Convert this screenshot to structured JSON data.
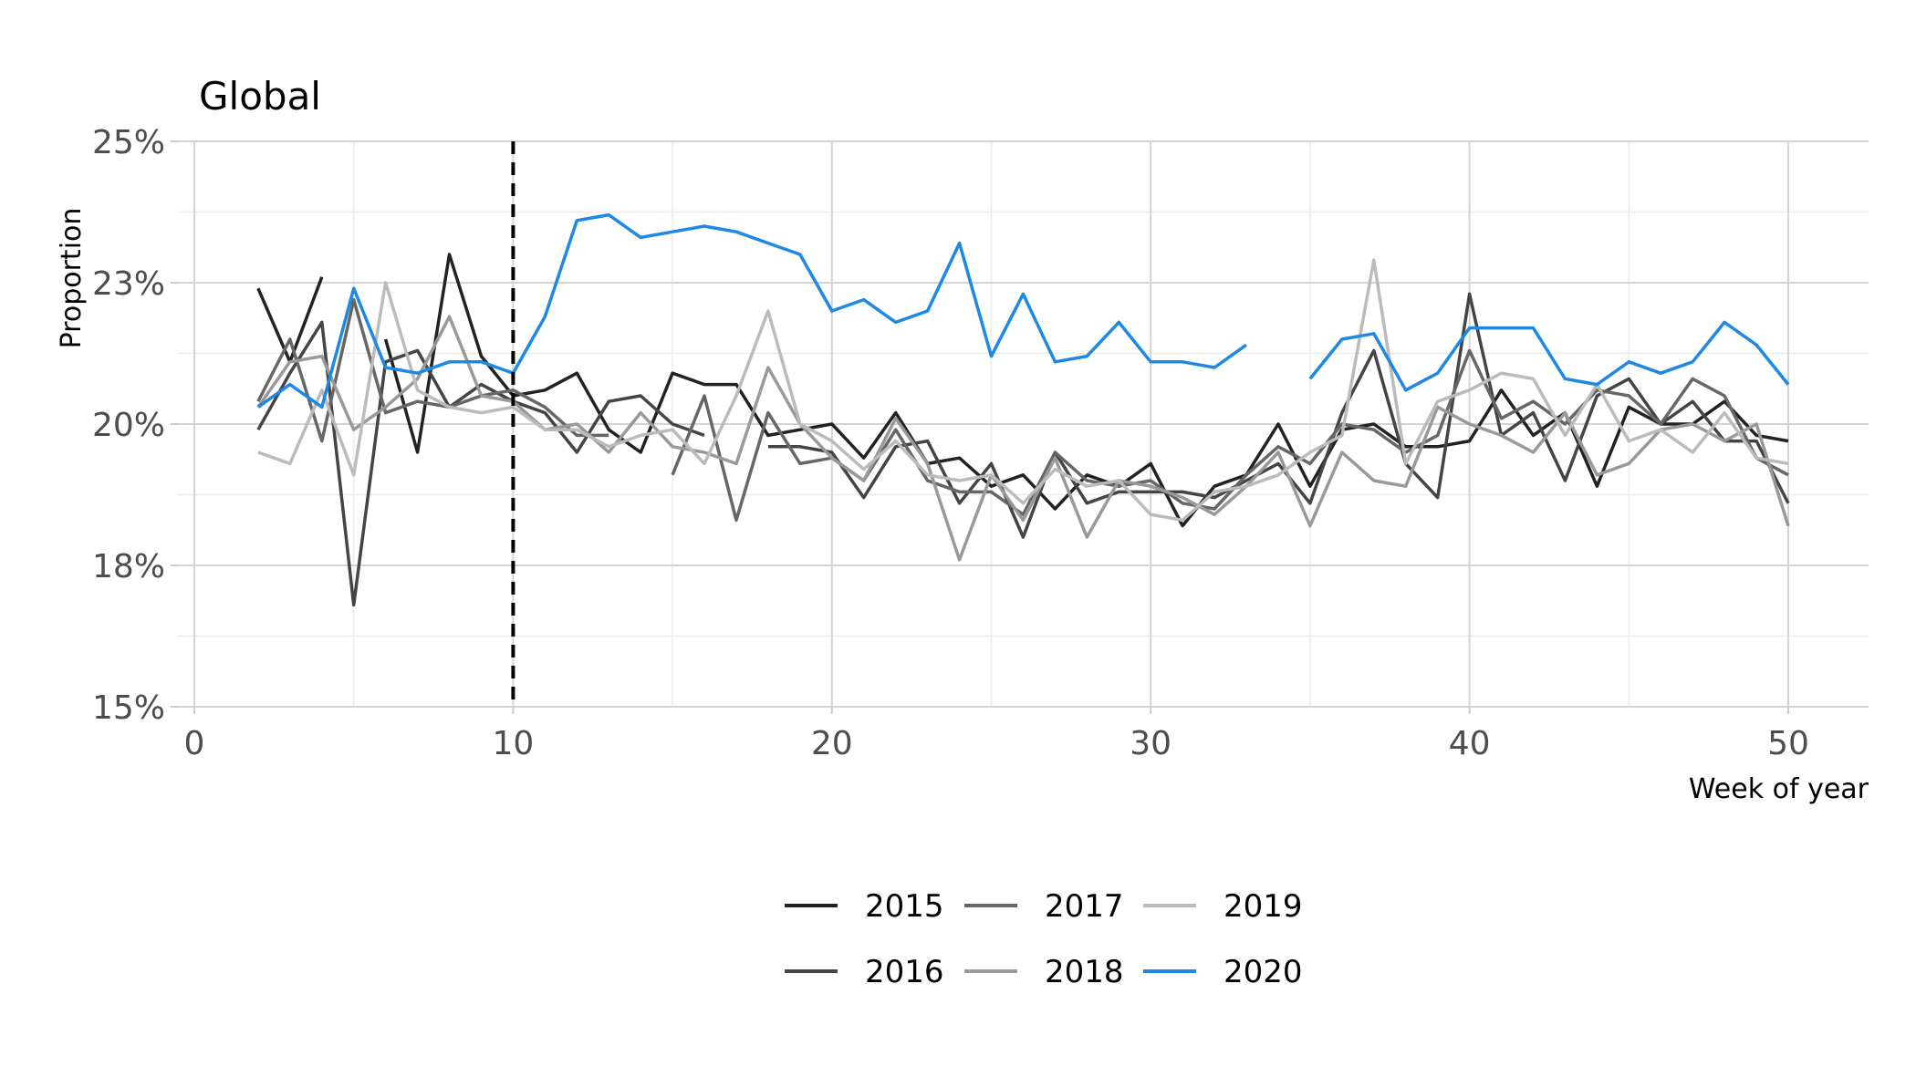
{
  "chart_data": {
    "type": "line",
    "title": "Global",
    "xlabel": "Week of year",
    "ylabel": "Proportion",
    "xlim": [
      0,
      52.5
    ],
    "ylim": [
      15,
      25
    ],
    "x_ticks": [
      0,
      10,
      20,
      30,
      40,
      50
    ],
    "y_ticks": [
      15,
      17.5,
      20,
      22.5,
      25
    ],
    "y_tick_labels": [
      "15%",
      "18%",
      "20%",
      "23%",
      "25%"
    ],
    "grid": true,
    "legend_position": "bottom",
    "reference_line": {
      "x": 10,
      "style": "dashed",
      "color": "#000000"
    },
    "series": [
      {
        "name": "2015",
        "color": "#222222",
        "points": [
          [
            2,
            22.4
          ],
          [
            3,
            21.1
          ],
          [
            4,
            22.6
          ],
          [
            null,
            null
          ],
          [
            6,
            21.5
          ],
          [
            7,
            19.5
          ],
          [
            8,
            23.0
          ],
          [
            9,
            21.2
          ],
          [
            10,
            20.5
          ],
          [
            11,
            20.6
          ],
          [
            12,
            20.9
          ],
          [
            13,
            19.9
          ],
          [
            14,
            19.5
          ],
          [
            15,
            20.9
          ],
          [
            16,
            20.7
          ],
          [
            17,
            20.7
          ],
          [
            18,
            19.8
          ],
          [
            19,
            19.9
          ],
          [
            20,
            20.0
          ],
          [
            21,
            19.4
          ],
          [
            22,
            20.2
          ],
          [
            23,
            19.3
          ],
          [
            24,
            19.4
          ],
          [
            25,
            18.9
          ],
          [
            26,
            19.1
          ],
          [
            27,
            18.5
          ],
          [
            28,
            19.1
          ],
          [
            29,
            18.9
          ],
          [
            30,
            19.3
          ],
          [
            31,
            18.2
          ],
          [
            32,
            18.9
          ],
          [
            33,
            19.1
          ],
          [
            34,
            20.0
          ],
          [
            35,
            18.9
          ],
          [
            36,
            19.9
          ],
          [
            37,
            20.0
          ],
          [
            38,
            19.6
          ],
          [
            39,
            19.6
          ],
          [
            40,
            19.7
          ],
          [
            41,
            20.6
          ],
          [
            42,
            19.8
          ],
          [
            43,
            20.2
          ],
          [
            44,
            18.9
          ],
          [
            45,
            20.3
          ],
          [
            46,
            20.0
          ],
          [
            47,
            20.0
          ],
          [
            48,
            20.4
          ],
          [
            49,
            19.8
          ],
          [
            50,
            19.7
          ]
        ]
      },
      {
        "name": "2016",
        "color": "#444444",
        "points": [
          [
            2,
            19.9
          ],
          [
            3,
            20.9
          ],
          [
            4,
            21.8
          ],
          [
            5,
            16.8
          ],
          [
            6,
            21.1
          ],
          [
            7,
            21.3
          ],
          [
            8,
            20.3
          ],
          [
            9,
            20.7
          ],
          [
            10,
            20.4
          ],
          [
            11,
            20.2
          ],
          [
            12,
            19.5
          ],
          [
            13,
            20.4
          ],
          [
            14,
            20.5
          ],
          [
            15,
            20.0
          ],
          [
            16,
            19.8
          ],
          [
            null,
            null
          ],
          [
            18,
            19.6
          ],
          [
            19,
            19.6
          ],
          [
            20,
            19.5
          ],
          [
            21,
            18.7
          ],
          [
            22,
            19.6
          ],
          [
            23,
            19.7
          ],
          [
            24,
            18.6
          ],
          [
            25,
            19.3
          ],
          [
            26,
            18.0
          ],
          [
            27,
            19.5
          ],
          [
            28,
            18.6
          ],
          [
            29,
            18.8
          ],
          [
            30,
            18.8
          ],
          [
            31,
            18.8
          ],
          [
            32,
            18.7
          ],
          [
            33,
            19.0
          ],
          [
            34,
            19.3
          ],
          [
            35,
            18.6
          ],
          [
            36,
            20.2
          ],
          [
            37,
            21.3
          ],
          [
            38,
            19.3
          ],
          [
            39,
            18.7
          ],
          [
            40,
            22.3
          ],
          [
            41,
            19.8
          ],
          [
            42,
            20.2
          ],
          [
            43,
            19.0
          ],
          [
            44,
            20.5
          ],
          [
            45,
            20.8
          ],
          [
            46,
            20.0
          ],
          [
            47,
            20.4
          ],
          [
            48,
            19.7
          ],
          [
            49,
            19.7
          ],
          [
            50,
            18.6
          ]
        ]
      },
      {
        "name": "2017",
        "color": "#666666",
        "points": [
          [
            2,
            20.4
          ],
          [
            3,
            21.5
          ],
          [
            4,
            19.7
          ],
          [
            5,
            22.2
          ],
          [
            6,
            20.2
          ],
          [
            7,
            20.4
          ],
          [
            8,
            20.3
          ],
          [
            9,
            20.5
          ],
          [
            10,
            20.6
          ],
          [
            11,
            20.3
          ],
          [
            12,
            19.8
          ],
          [
            13,
            19.8
          ],
          [
            null,
            null
          ],
          [
            15,
            19.1
          ],
          [
            16,
            20.5
          ],
          [
            17,
            18.3
          ],
          [
            18,
            20.2
          ],
          [
            19,
            19.3
          ],
          [
            20,
            19.4
          ],
          [
            21,
            19.0
          ],
          [
            22,
            19.9
          ],
          [
            23,
            19.0
          ],
          [
            24,
            18.8
          ],
          [
            25,
            18.8
          ],
          [
            26,
            18.4
          ],
          [
            27,
            19.5
          ],
          [
            28,
            19.0
          ],
          [
            29,
            18.9
          ],
          [
            30,
            19.0
          ],
          [
            31,
            18.6
          ],
          [
            32,
            18.5
          ],
          [
            33,
            19.1
          ],
          [
            34,
            19.6
          ],
          [
            35,
            19.3
          ],
          [
            36,
            20.0
          ],
          [
            37,
            19.9
          ],
          [
            38,
            19.5
          ],
          [
            39,
            19.8
          ],
          [
            40,
            21.3
          ],
          [
            41,
            20.1
          ],
          [
            42,
            20.4
          ],
          [
            43,
            20.0
          ],
          [
            44,
            20.6
          ],
          [
            45,
            20.5
          ],
          [
            46,
            20.0
          ],
          [
            47,
            20.8
          ],
          [
            48,
            20.5
          ],
          [
            49,
            19.4
          ],
          [
            50,
            19.1
          ]
        ]
      },
      {
        "name": "2018",
        "color": "#999999",
        "points": [
          [
            2,
            20.3
          ],
          [
            3,
            21.1
          ],
          [
            4,
            21.2
          ],
          [
            5,
            19.9
          ],
          [
            6,
            20.3
          ],
          [
            7,
            20.8
          ],
          [
            8,
            21.9
          ],
          [
            9,
            20.5
          ],
          [
            10,
            20.4
          ],
          [
            11,
            19.9
          ],
          [
            12,
            20.0
          ],
          [
            13,
            19.5
          ],
          [
            14,
            20.2
          ],
          [
            15,
            19.6
          ],
          [
            16,
            19.5
          ],
          [
            17,
            19.3
          ],
          [
            18,
            21.0
          ],
          [
            19,
            20.0
          ],
          [
            20,
            19.4
          ],
          [
            21,
            19.0
          ],
          [
            22,
            20.1
          ],
          [
            23,
            19.3
          ],
          [
            24,
            17.6
          ],
          [
            25,
            19.1
          ],
          [
            26,
            18.3
          ],
          [
            27,
            19.4
          ],
          [
            28,
            18.0
          ],
          [
            29,
            19.0
          ],
          [
            30,
            18.9
          ],
          [
            31,
            18.7
          ],
          [
            32,
            18.4
          ],
          [
            33,
            18.9
          ],
          [
            34,
            19.5
          ],
          [
            35,
            18.2
          ],
          [
            36,
            19.5
          ],
          [
            37,
            19.0
          ],
          [
            38,
            18.9
          ],
          [
            39,
            20.3
          ],
          [
            40,
            20.0
          ],
          [
            41,
            19.8
          ],
          [
            42,
            19.5
          ],
          [
            43,
            20.2
          ],
          [
            44,
            19.1
          ],
          [
            45,
            19.3
          ],
          [
            46,
            19.9
          ],
          [
            47,
            20.0
          ],
          [
            48,
            19.7
          ],
          [
            49,
            20.0
          ],
          [
            50,
            18.2
          ]
        ]
      },
      {
        "name": "2019",
        "color": "#bbbbbb",
        "points": [
          [
            2,
            19.5
          ],
          [
            3,
            19.3
          ],
          [
            4,
            20.6
          ],
          [
            5,
            19.1
          ],
          [
            6,
            22.5
          ],
          [
            7,
            20.6
          ],
          [
            8,
            20.3
          ],
          [
            9,
            20.2
          ],
          [
            10,
            20.3
          ],
          [
            11,
            19.9
          ],
          [
            12,
            19.9
          ],
          [
            13,
            19.6
          ],
          [
            14,
            19.8
          ],
          [
            15,
            19.9
          ],
          [
            16,
            19.3
          ],
          [
            17,
            20.5
          ],
          [
            18,
            22.0
          ],
          [
            19,
            20.0
          ],
          [
            20,
            19.7
          ],
          [
            21,
            19.2
          ],
          [
            22,
            19.7
          ],
          [
            23,
            19.1
          ],
          [
            24,
            19.0
          ],
          [
            25,
            19.1
          ],
          [
            26,
            18.6
          ],
          [
            27,
            19.2
          ],
          [
            28,
            18.9
          ],
          [
            29,
            19.0
          ],
          [
            30,
            18.4
          ],
          [
            31,
            18.3
          ],
          [
            32,
            18.8
          ],
          [
            33,
            18.9
          ],
          [
            34,
            19.1
          ],
          [
            35,
            19.5
          ],
          [
            36,
            19.8
          ],
          [
            37,
            22.9
          ],
          [
            38,
            19.3
          ],
          [
            39,
            20.4
          ],
          [
            40,
            20.6
          ],
          [
            41,
            20.9
          ],
          [
            42,
            20.8
          ],
          [
            43,
            19.8
          ],
          [
            44,
            20.7
          ],
          [
            45,
            19.7
          ],
          [
            46,
            19.9
          ],
          [
            47,
            19.5
          ],
          [
            48,
            20.2
          ],
          [
            49,
            19.4
          ],
          [
            50,
            19.3
          ]
        ]
      },
      {
        "name": "2020",
        "color": "#1e88e5",
        "points": [
          [
            2,
            20.3
          ],
          [
            3,
            20.7
          ],
          [
            4,
            20.3
          ],
          [
            5,
            22.4
          ],
          [
            6,
            21.0
          ],
          [
            7,
            20.9
          ],
          [
            8,
            21.1
          ],
          [
            9,
            21.1
          ],
          [
            10,
            20.9
          ],
          [
            11,
            21.9
          ],
          [
            12,
            23.6
          ],
          [
            13,
            23.7
          ],
          [
            14,
            23.3
          ],
          [
            15,
            23.4
          ],
          [
            16,
            23.5
          ],
          [
            17,
            23.4
          ],
          [
            18,
            23.2
          ],
          [
            19,
            23.0
          ],
          [
            20,
            22.0
          ],
          [
            21,
            22.2
          ],
          [
            22,
            21.8
          ],
          [
            23,
            22.0
          ],
          [
            24,
            23.2
          ],
          [
            25,
            21.2
          ],
          [
            26,
            22.3
          ],
          [
            27,
            21.1
          ],
          [
            28,
            21.2
          ],
          [
            29,
            21.8
          ],
          [
            30,
            21.1
          ],
          [
            31,
            21.1
          ],
          [
            32,
            21.0
          ],
          [
            33,
            21.4
          ],
          [
            null,
            null
          ],
          [
            35,
            20.8
          ],
          [
            36,
            21.5
          ],
          [
            37,
            21.6
          ],
          [
            38,
            20.6
          ],
          [
            39,
            20.9
          ],
          [
            40,
            21.7
          ],
          [
            41,
            21.7
          ],
          [
            42,
            21.7
          ],
          [
            43,
            20.8
          ],
          [
            44,
            20.7
          ],
          [
            45,
            21.1
          ],
          [
            46,
            20.9
          ],
          [
            47,
            21.1
          ],
          [
            48,
            21.8
          ],
          [
            49,
            21.4
          ],
          [
            50,
            20.7
          ]
        ]
      }
    ]
  }
}
